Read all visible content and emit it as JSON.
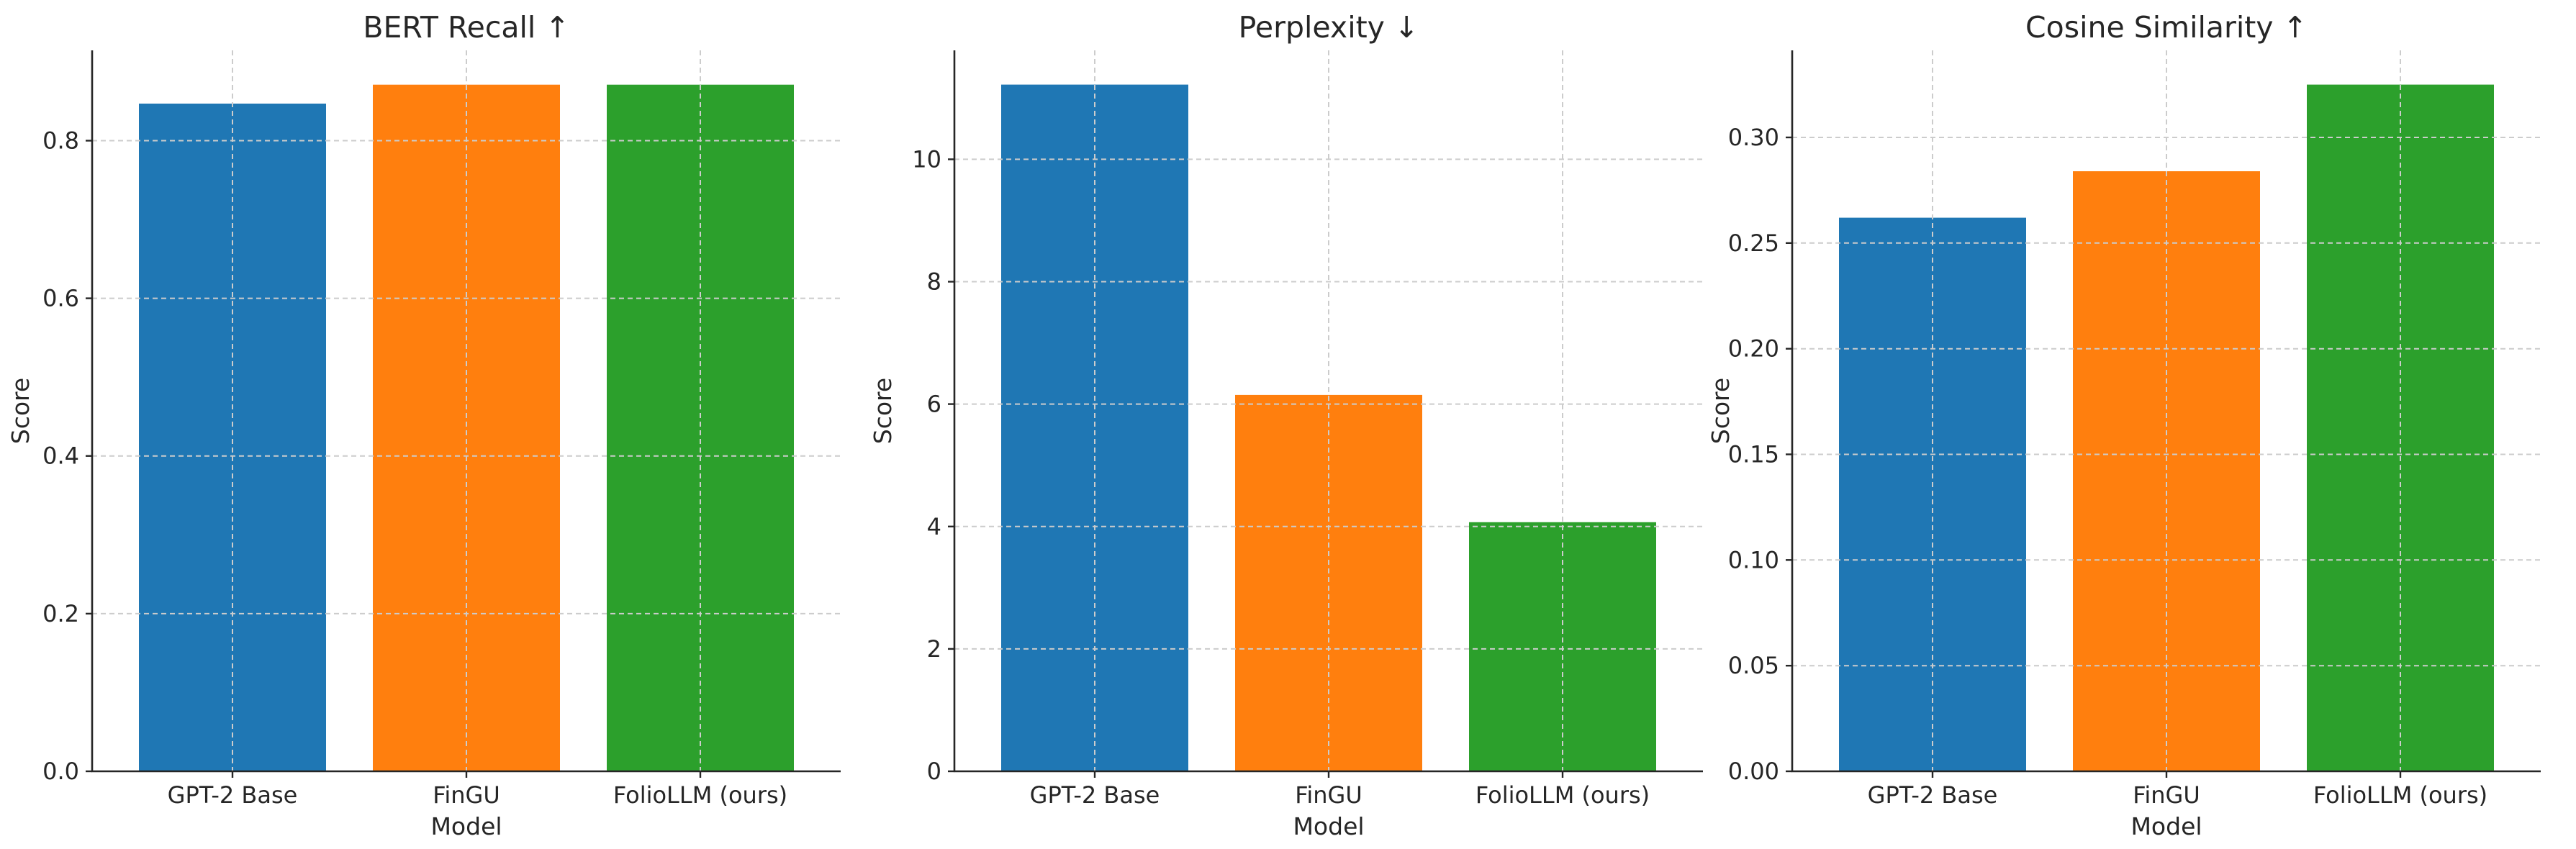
{
  "colors": {
    "blue": "#1f77b4",
    "orange": "#ff7f0e",
    "green": "#2ca02c",
    "grid": "#cccccc",
    "axis": "#262626"
  },
  "chart_data": [
    {
      "type": "bar",
      "title": "BERT Recall ↑",
      "xlabel": "Model",
      "ylabel": "Score",
      "categories": [
        "GPT-2 Base",
        "FinGU",
        "FolioLLM (ours)"
      ],
      "values": [
        0.847,
        0.871,
        0.871
      ],
      "bar_colors": [
        "#1f77b4",
        "#ff7f0e",
        "#2ca02c"
      ],
      "ylim": [
        0,
        0.9145
      ],
      "yticks": [
        0.0,
        0.2,
        0.4,
        0.6,
        0.8
      ],
      "ytick_labels": [
        "0.0",
        "0.2",
        "0.4",
        "0.6",
        "0.8"
      ],
      "grid": true,
      "legend": false
    },
    {
      "type": "bar",
      "title": "Perplexity ↓",
      "xlabel": "Model",
      "ylabel": "Score",
      "categories": [
        "GPT-2 Base",
        "FinGU",
        "FolioLLM (ours)"
      ],
      "values": [
        11.22,
        6.15,
        4.07
      ],
      "bar_colors": [
        "#1f77b4",
        "#ff7f0e",
        "#2ca02c"
      ],
      "ylim": [
        0,
        11.78
      ],
      "yticks": [
        0,
        2,
        4,
        6,
        8,
        10
      ],
      "ytick_labels": [
        "0",
        "2",
        "4",
        "6",
        "8",
        "10"
      ],
      "grid": true,
      "legend": false
    },
    {
      "type": "bar",
      "title": "Cosine Similarity ↑",
      "xlabel": "Model",
      "ylabel": "Score",
      "categories": [
        "GPT-2 Base",
        "FinGU",
        "FolioLLM (ours)"
      ],
      "values": [
        0.262,
        0.284,
        0.325
      ],
      "bar_colors": [
        "#1f77b4",
        "#ff7f0e",
        "#2ca02c"
      ],
      "ylim": [
        0,
        0.3412
      ],
      "yticks": [
        0.0,
        0.05,
        0.1,
        0.15,
        0.2,
        0.25,
        0.3
      ],
      "ytick_labels": [
        "0.00",
        "0.05",
        "0.10",
        "0.15",
        "0.20",
        "0.25",
        "0.30"
      ],
      "grid": true,
      "legend": false
    }
  ]
}
